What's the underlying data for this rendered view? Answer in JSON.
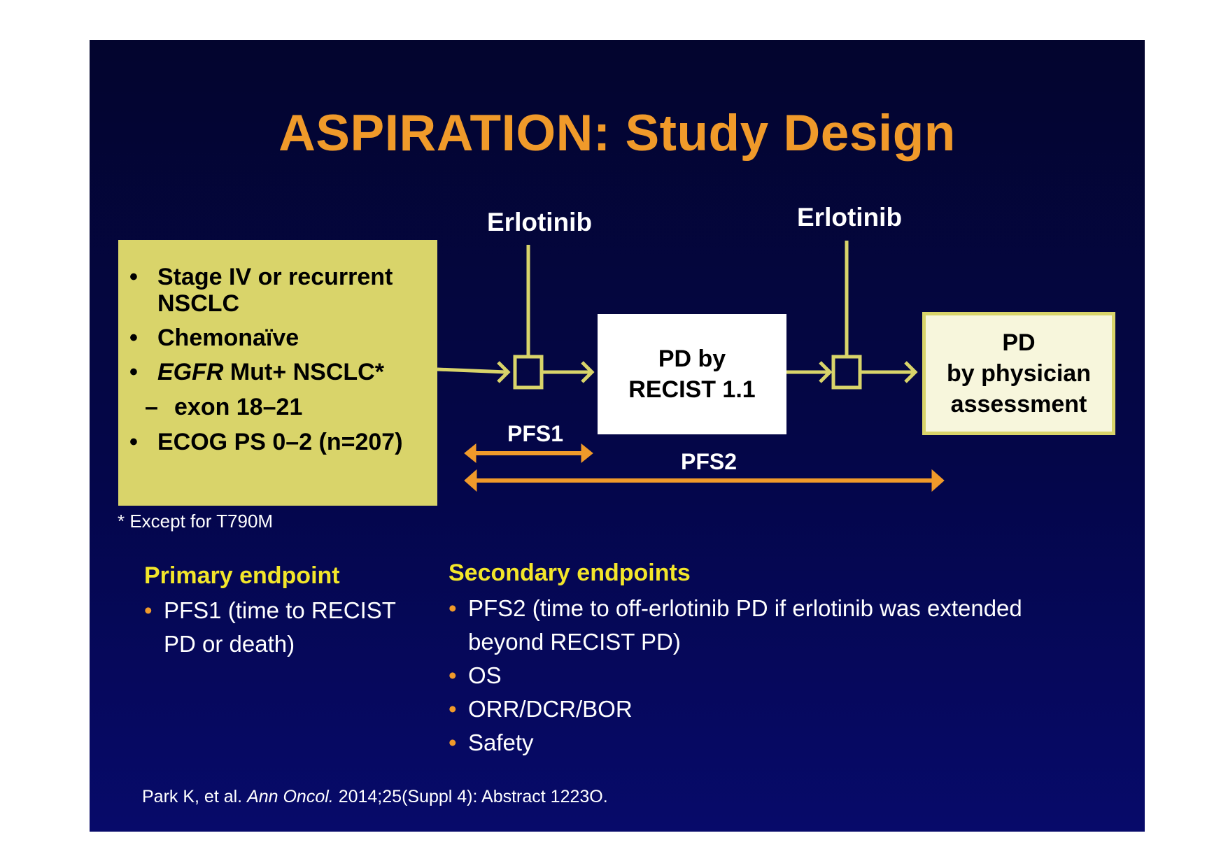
{
  "slide": {
    "title": "ASPIRATION: Study Design"
  },
  "criteria": {
    "bullet": "•",
    "dash": "–",
    "items": [
      {
        "text": "Stage IV or recurrent"
      },
      {
        "text": "NSCLC"
      },
      {
        "text": "Chemonaïve"
      },
      {
        "italic": "EGFR",
        "text": " Mut+ NSCLC*"
      },
      {
        "text": "exon 18–21"
      },
      {
        "text": "ECOG PS 0–2 (n=207)"
      }
    ],
    "footnote": "* Except for T790M"
  },
  "flow": {
    "erlotinib_1": "Erlotinib",
    "erlotinib_2": "Erlotinib",
    "recist_box": [
      "PD by",
      "RECIST 1.1"
    ],
    "physician_box": [
      "PD",
      "by physician",
      "assessment"
    ],
    "pfs1": "PFS1",
    "pfs2": "PFS2",
    "colors": {
      "connector": "#d9d46a",
      "pfs_arrow": "#f09a2a"
    }
  },
  "endpoints": {
    "primary_heading": "Primary endpoint",
    "primary_items": [
      [
        "PFS1 (time to RECIST",
        "PD or death)"
      ]
    ],
    "secondary_heading": "Secondary endpoints",
    "secondary_items": [
      [
        "PFS2 (time to off-erlotinib PD if erlotinib was extended",
        "beyond RECIST PD)"
      ],
      [
        "OS"
      ],
      [
        "ORR/DCR/BOR"
      ],
      [
        "Safety"
      ]
    ],
    "bullet": "•"
  },
  "citation": {
    "pre": "Park K, et al. ",
    "journal": "Ann Oncol.",
    "post": " 2014;25(Suppl 4): Abstract 1223O."
  }
}
